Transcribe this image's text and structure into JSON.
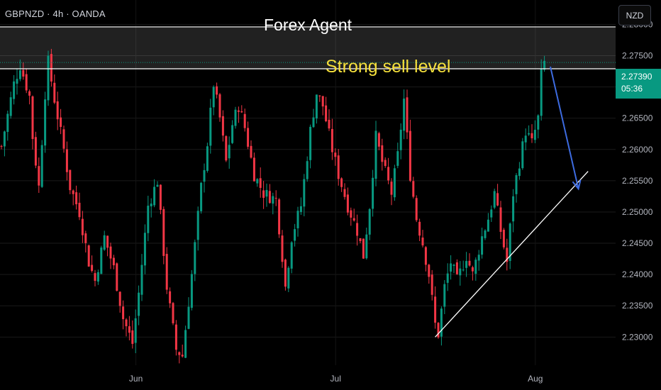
{
  "header": {
    "symbol": "GBPNZD · 4h · OANDA",
    "title": "Forex Agent",
    "currency": "NZD"
  },
  "annotation": {
    "zone_label": "Strong sell level"
  },
  "price_badge": {
    "price": "2.27390",
    "countdown": "05:36"
  },
  "colors": {
    "bullish": "#089981",
    "bearish": "#f23645",
    "label": "#f5e03c",
    "arrow": "#3d6be0",
    "background": "#000000"
  },
  "chart_data": {
    "type": "candlestick",
    "symbol": "GBPNZD",
    "timeframe": "4h",
    "y_ticks": [
      2.28,
      2.275,
      2.27,
      2.265,
      2.26,
      2.255,
      2.25,
      2.245,
      2.24,
      2.235,
      2.23
    ],
    "y_tick_labels": [
      "2.28000",
      "2.27500",
      "2.27000",
      "2.26500",
      "2.26000",
      "2.25500",
      "2.25000",
      "2.24500",
      "2.24000",
      "2.23500",
      "2.23000"
    ],
    "ylim": [
      2.2255,
      2.2839
    ],
    "x_labels": [
      "Jun",
      "Jul",
      "Aug"
    ],
    "x_label_index": [
      24,
      88,
      152
    ],
    "candle_count": 176,
    "sell_zone": [
      2.2729,
      2.2796
    ],
    "last_price": 2.2739,
    "close_path": [
      [
        0,
        2.2605
      ],
      [
        4,
        2.2705
      ],
      [
        6,
        2.2735
      ],
      [
        9,
        2.2685
      ],
      [
        10,
        2.262
      ],
      [
        12,
        2.254
      ],
      [
        14,
        2.269
      ],
      [
        15,
        2.274
      ],
      [
        17,
        2.268
      ],
      [
        20,
        2.26
      ],
      [
        22,
        2.254
      ],
      [
        25,
        2.25
      ],
      [
        28,
        2.242
      ],
      [
        30,
        2.239
      ],
      [
        33,
        2.246
      ],
      [
        36,
        2.241
      ],
      [
        39,
        2.233
      ],
      [
        42,
        2.229
      ],
      [
        44,
        2.237
      ],
      [
        47,
        2.251
      ],
      [
        50,
        2.255
      ],
      [
        53,
        2.238
      ],
      [
        56,
        2.228
      ],
      [
        58,
        2.227
      ],
      [
        61,
        2.24
      ],
      [
        64,
        2.254
      ],
      [
        66,
        2.261
      ],
      [
        68,
        2.2705
      ],
      [
        70,
        2.265
      ],
      [
        72,
        2.258
      ],
      [
        74,
        2.264
      ],
      [
        76,
        2.267
      ],
      [
        78,
        2.2635
      ],
      [
        81,
        2.256
      ],
      [
        84,
        2.253
      ],
      [
        88,
        2.252
      ],
      [
        90,
        2.243
      ],
      [
        91,
        2.238
      ],
      [
        93,
        2.246
      ],
      [
        96,
        2.251
      ],
      [
        99,
        2.263
      ],
      [
        101,
        2.269
      ],
      [
        103,
        2.267
      ],
      [
        106,
        2.26
      ],
      [
        108,
        2.256
      ],
      [
        111,
        2.251
      ],
      [
        114,
        2.247
      ],
      [
        116,
        2.243
      ],
      [
        118,
        2.251
      ],
      [
        120,
        2.262
      ],
      [
        122,
        2.258
      ],
      [
        125,
        2.253
      ],
      [
        127,
        2.259
      ],
      [
        129,
        2.268
      ],
      [
        131,
        2.256
      ],
      [
        133,
        2.249
      ],
      [
        135,
        2.245
      ],
      [
        137,
        2.24
      ],
      [
        139,
        2.232
      ],
      [
        140,
        2.2305
      ],
      [
        142,
        2.238
      ],
      [
        144,
        2.242
      ],
      [
        146,
        2.239
      ],
      [
        149,
        2.243
      ],
      [
        151,
        2.24
      ],
      [
        154,
        2.246
      ],
      [
        156,
        2.249
      ],
      [
        158,
        2.253
      ],
      [
        160,
        2.247
      ],
      [
        162,
        2.242
      ],
      [
        164,
        2.253
      ],
      [
        166,
        2.258
      ],
      [
        168,
        2.263
      ],
      [
        170,
        2.261
      ],
      [
        172,
        2.265
      ],
      [
        173,
        2.272
      ],
      [
        174,
        2.2739
      ]
    ],
    "trendline": {
      "from": [
        139,
        2.23
      ],
      "to": [
        188,
        2.2565
      ]
    },
    "projection_arrow": {
      "from": [
        175,
        2.2729
      ],
      "to": [
        184,
        2.2555
      ]
    }
  }
}
